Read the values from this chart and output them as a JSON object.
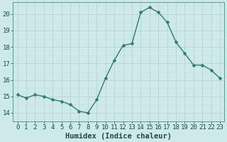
{
  "xlabel": "Humidex (Indice chaleur)",
  "x": [
    0,
    1,
    2,
    3,
    4,
    5,
    6,
    7,
    8,
    9,
    10,
    11,
    12,
    13,
    14,
    15,
    16,
    17,
    18,
    19,
    20,
    21,
    22,
    23
  ],
  "y": [
    15.1,
    14.9,
    15.1,
    15.0,
    14.8,
    14.7,
    14.5,
    14.1,
    14.0,
    14.8,
    16.1,
    17.2,
    18.1,
    18.2,
    20.1,
    20.4,
    20.1,
    19.5,
    18.3,
    17.6,
    16.9,
    16.9,
    16.6,
    16.1
  ],
  "line_color": "#2d7a70",
  "marker": "D",
  "marker_size": 2.5,
  "bg_color": "#ceeae8",
  "grid_color_major": "#b8d4d2",
  "grid_color_minor": "#c5dedd",
  "ylim": [
    13.5,
    20.7
  ],
  "xlim": [
    -0.5,
    23.5
  ],
  "yticks": [
    14,
    15,
    16,
    17,
    18,
    19,
    20
  ],
  "xticks": [
    0,
    1,
    2,
    3,
    4,
    5,
    6,
    7,
    8,
    9,
    10,
    11,
    12,
    13,
    14,
    15,
    16,
    17,
    18,
    19,
    20,
    21,
    22,
    23
  ],
  "xlabel_fontsize": 7.5,
  "tick_fontsize": 6.5,
  "line_width": 1.0,
  "grid_major_lw": 0.6,
  "grid_minor_lw": 0.4
}
